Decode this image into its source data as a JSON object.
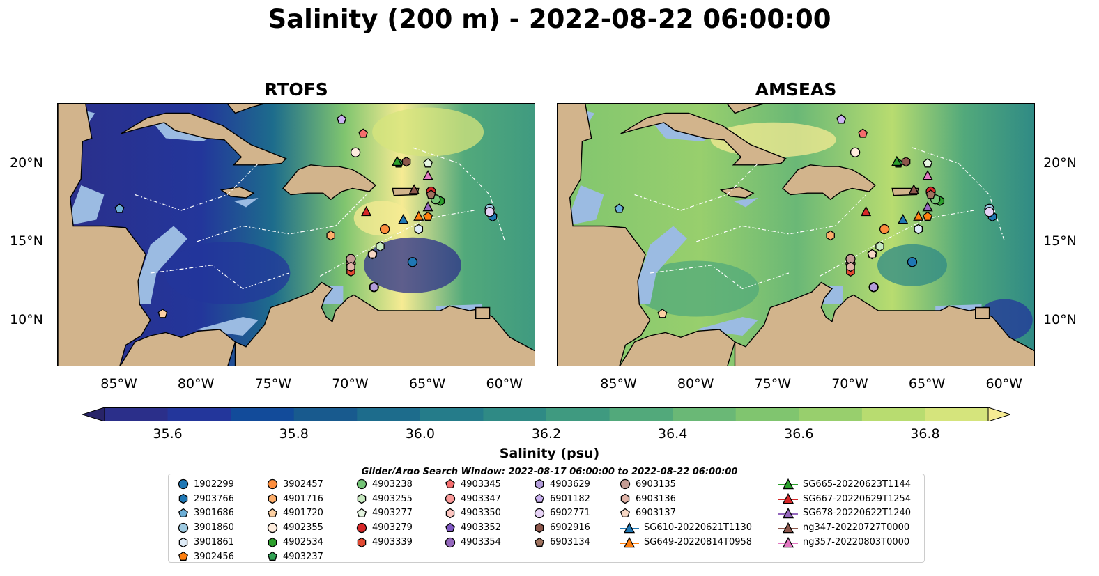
{
  "title": "Salinity (200 m) - 2022-08-22 06:00:00",
  "panels": [
    {
      "name": "RTOFS",
      "field": "rtofs"
    },
    {
      "name": "AMSEAS",
      "field": "amseas"
    }
  ],
  "axes": {
    "lon_ticks": [
      {
        "lon": -85,
        "label": "85°W"
      },
      {
        "lon": -80,
        "label": "80°W"
      },
      {
        "lon": -75,
        "label": "75°W"
      },
      {
        "lon": -70,
        "label": "70°W"
      },
      {
        "lon": -65,
        "label": "65°W"
      },
      {
        "lon": -60,
        "label": "60°W"
      }
    ],
    "lat_ticks": [
      {
        "lat": 20,
        "label": "20°N"
      },
      {
        "lat": 15,
        "label": "15°N"
      },
      {
        "lat": 10,
        "label": "10°N"
      }
    ],
    "lon_range": [
      -89,
      -58
    ],
    "lat_range": [
      7,
      23.8
    ]
  },
  "colorbar": {
    "title": "Salinity (psu)",
    "min": 35.5,
    "max": 36.9,
    "extend": "both",
    "tick_labels": [
      "35.6",
      "35.8",
      "36.0",
      "36.2",
      "36.4",
      "36.6",
      "36.8"
    ],
    "tick_values": [
      35.6,
      35.8,
      36.0,
      36.2,
      36.4,
      36.6,
      36.8
    ],
    "colors": [
      "#282468",
      "#2b2f8a",
      "#23369b",
      "#124b9a",
      "#185a8e",
      "#1d6c8c",
      "#257c8a",
      "#2f8a85",
      "#3f9a80",
      "#52a97b",
      "#6ab876",
      "#80c56f",
      "#98cf6d",
      "#b8dc70",
      "#d5e47c",
      "#f6eb93"
    ]
  },
  "search_window": "Glider/Argo Search Window: 2022-08-17 06:00:00 to 2022-08-22 06:00:00",
  "colors": {
    "land": "#d2b48c",
    "shelf": "#9bbbe2",
    "ocean_low": "#2b2f8a",
    "ocean_high": "#f6eb93"
  },
  "legend": [
    {
      "label": "1902299",
      "marker": "circle",
      "color": "#1f77b4"
    },
    {
      "label": "2903766",
      "marker": "hexagon",
      "color": "#1f77b4"
    },
    {
      "label": "3901686",
      "marker": "pentagon",
      "color": "#6baed6"
    },
    {
      "label": "3901860",
      "marker": "circle",
      "color": "#9ecae1"
    },
    {
      "label": "3901861",
      "marker": "hexagon",
      "color": "#deebf7"
    },
    {
      "label": "3902456",
      "marker": "pentagon",
      "color": "#ff7f0e"
    },
    {
      "label": "3902457",
      "marker": "circle",
      "color": "#fd8d3c"
    },
    {
      "label": "4901716",
      "marker": "hexagon",
      "color": "#fdae6b"
    },
    {
      "label": "4901720",
      "marker": "pentagon",
      "color": "#fdd0a2"
    },
    {
      "label": "4902355",
      "marker": "circle",
      "color": "#feedde"
    },
    {
      "label": "4902534",
      "marker": "hexagon",
      "color": "#2ca02c"
    },
    {
      "label": "4903237",
      "marker": "pentagon",
      "color": "#31a354"
    },
    {
      "label": "4903238",
      "marker": "circle",
      "color": "#74c476"
    },
    {
      "label": "4903255",
      "marker": "hexagon",
      "color": "#c7e9c0"
    },
    {
      "label": "4903277",
      "marker": "pentagon",
      "color": "#e5f5e0"
    },
    {
      "label": "4903279",
      "marker": "circle",
      "color": "#d62728"
    },
    {
      "label": "4903339",
      "marker": "hexagon",
      "color": "#e34a33"
    },
    {
      "label": "4903345",
      "marker": "pentagon",
      "color": "#f46d6d"
    },
    {
      "label": "4903347",
      "marker": "circle",
      "color": "#fb9a99"
    },
    {
      "label": "4903350",
      "marker": "hexagon",
      "color": "#fcc5c0"
    },
    {
      "label": "4903352",
      "marker": "pentagon",
      "color": "#7e57c2"
    },
    {
      "label": "4903354",
      "marker": "circle",
      "color": "#9467bd"
    },
    {
      "label": "4903629",
      "marker": "hexagon",
      "color": "#b39ddb"
    },
    {
      "label": "6901182",
      "marker": "pentagon",
      "color": "#cab2f0"
    },
    {
      "label": "6902771",
      "marker": "circle",
      "color": "#e6d2f5"
    },
    {
      "label": "6902916",
      "marker": "hexagon",
      "color": "#8c564b"
    },
    {
      "label": "6903134",
      "marker": "pentagon",
      "color": "#a0735f"
    },
    {
      "label": "6903135",
      "marker": "circle",
      "color": "#c49c94"
    },
    {
      "label": "6903136",
      "marker": "hexagon",
      "color": "#e0b4a8"
    },
    {
      "label": "6903137",
      "marker": "pentagon",
      "color": "#f7d7c4"
    },
    {
      "label": "SG610-20220621T1130",
      "marker": "triangle-line",
      "color": "#1f77b4"
    },
    {
      "label": "SG649-20220814T0958",
      "marker": "triangle-line",
      "color": "#ff7f0e"
    },
    {
      "label": "SG665-20220623T1144",
      "marker": "triangle-line",
      "color": "#2ca02c"
    },
    {
      "label": "SG667-20220629T1254",
      "marker": "triangle-line",
      "color": "#d62728"
    },
    {
      "label": "SG678-20220622T1240",
      "marker": "triangle-line",
      "color": "#9467bd"
    },
    {
      "label": "ng347-20220727T0000",
      "marker": "triangle-line",
      "color": "#8c564b"
    },
    {
      "label": "ng357-20220803T0000",
      "marker": "triangle-line",
      "color": "#e377c2"
    }
  ],
  "platforms": [
    {
      "id": "1902299",
      "lon": -66.0,
      "lat": 13.7
    },
    {
      "id": "2903766",
      "lon": -60.8,
      "lat": 16.6
    },
    {
      "id": "3901686",
      "lon": -85.0,
      "lat": 17.1
    },
    {
      "id": "3901860",
      "lon": -61.0,
      "lat": 17.1
    },
    {
      "id": "3901861",
      "lon": -65.6,
      "lat": 15.8
    },
    {
      "id": "3902456",
      "lon": -65.0,
      "lat": 16.6
    },
    {
      "id": "3902457",
      "lon": -67.8,
      "lat": 15.8
    },
    {
      "id": "4901716",
      "lon": -71.3,
      "lat": 15.4
    },
    {
      "id": "4901720",
      "lon": -82.2,
      "lat": 10.4
    },
    {
      "id": "4902355",
      "lon": -69.7,
      "lat": 20.7
    },
    {
      "id": "4902534",
      "lon": -64.2,
      "lat": 17.6
    },
    {
      "id": "4903237",
      "lon": -66.9,
      "lat": 20.0
    },
    {
      "id": "4903238",
      "lon": -64.5,
      "lat": 17.7
    },
    {
      "id": "4903255",
      "lon": -68.1,
      "lat": 14.7
    },
    {
      "id": "4903277",
      "lon": -65.0,
      "lat": 20.0
    },
    {
      "id": "4903279",
      "lon": -64.8,
      "lat": 18.2
    },
    {
      "id": "4903339",
      "lon": -70.0,
      "lat": 13.1
    },
    {
      "id": "4903345",
      "lon": -69.2,
      "lat": 21.9
    },
    {
      "id": "4903347",
      "lon": -70.0,
      "lat": 13.6
    },
    {
      "id": "4903350",
      "lon": -68.6,
      "lat": 14.2
    },
    {
      "id": "4903352",
      "lon": -70.6,
      "lat": 22.8
    },
    {
      "id": "4903354",
      "lon": -68.5,
      "lat": 12.1
    },
    {
      "id": "4903629",
      "lon": -68.5,
      "lat": 12.1
    },
    {
      "id": "6901182",
      "lon": -70.6,
      "lat": 22.8
    },
    {
      "id": "6902771",
      "lon": -61.0,
      "lat": 16.9
    },
    {
      "id": "6902916",
      "lon": -66.4,
      "lat": 20.1
    },
    {
      "id": "6903134",
      "lon": -64.8,
      "lat": 18.0
    },
    {
      "id": "6903135",
      "lon": -70.0,
      "lat": 13.9
    },
    {
      "id": "6903136",
      "lon": -70.0,
      "lat": 13.4
    },
    {
      "id": "6903137",
      "lon": -68.6,
      "lat": 14.2
    },
    {
      "id": "SG610-20220621T1130",
      "lon": -66.6,
      "lat": 16.4
    },
    {
      "id": "SG649-20220814T0958",
      "lon": -65.6,
      "lat": 16.6
    },
    {
      "id": "SG665-20220623T1144",
      "lon": -67.0,
      "lat": 20.1
    },
    {
      "id": "SG667-20220629T1254",
      "lon": -69.0,
      "lat": 16.9
    },
    {
      "id": "SG678-20220622T1240",
      "lon": -65.0,
      "lat": 17.2
    },
    {
      "id": "ng347-20220727T0000",
      "lon": -65.9,
      "lat": 18.3
    },
    {
      "id": "ng357-20220803T0000",
      "lon": -65.0,
      "lat": 19.2
    }
  ]
}
